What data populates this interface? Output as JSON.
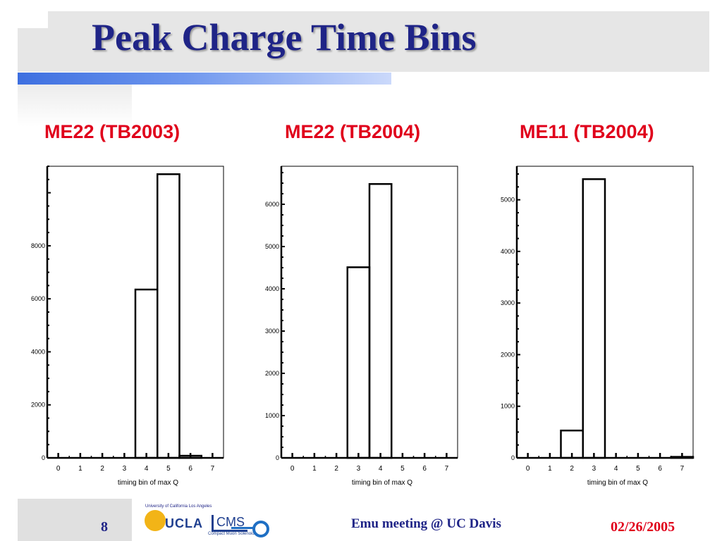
{
  "slide": {
    "title": "Peak Charge Time Bins",
    "page_number": "8",
    "footer_center": "Emu meeting @ UC Davis",
    "footer_date": "02/26/2005",
    "logo": {
      "top_text": "University of California Los Angeles",
      "ucla": "UCLA",
      "cms": "CMS",
      "cms_sub": "Compact Muon Solenoid"
    }
  },
  "colors": {
    "title": "#1f2487",
    "panel_title": "#e0001b",
    "accent_blue": "#3d6fe0",
    "band_gray": "#e6e6e6"
  },
  "chart_data": [
    {
      "type": "bar",
      "title": "ME22 (TB2003)",
      "xlabel": "timing bin of max Q",
      "ylabel": "",
      "categories": [
        "0",
        "1",
        "2",
        "3",
        "4",
        "5",
        "6",
        "7"
      ],
      "values": [
        0,
        0,
        0,
        0,
        6350,
        10700,
        80,
        0
      ],
      "ylim": [
        0,
        11000
      ],
      "xlim": [
        -0.5,
        7.5
      ],
      "yticks": [
        0,
        2000,
        4000,
        6000,
        8000,
        10000
      ],
      "ytick_labels": [
        "0",
        "2000",
        "4000",
        "6000",
        "8000",
        ""
      ],
      "histogram_step": true,
      "grid": false
    },
    {
      "type": "bar",
      "title": "ME22 (TB2004)",
      "xlabel": "timing bin of max Q",
      "ylabel": "",
      "categories": [
        "0",
        "1",
        "2",
        "3",
        "4",
        "5",
        "6",
        "7"
      ],
      "values": [
        0,
        0,
        0,
        4510,
        6480,
        0,
        0,
        0
      ],
      "ylim": [
        0,
        6900
      ],
      "xlim": [
        -0.5,
        7.5
      ],
      "yticks": [
        0,
        1000,
        2000,
        3000,
        4000,
        5000,
        6000
      ],
      "ytick_labels": [
        "0",
        "1000",
        "2000",
        "3000",
        "4000",
        "5000",
        "6000"
      ],
      "histogram_step": true,
      "grid": false
    },
    {
      "type": "bar",
      "title": "ME11 (TB2004)",
      "xlabel": "timing bin of max Q",
      "ylabel": "",
      "categories": [
        "0",
        "1",
        "2",
        "3",
        "4",
        "5",
        "6",
        "7"
      ],
      "values": [
        0,
        0,
        530,
        5400,
        0,
        0,
        0,
        20
      ],
      "ylim": [
        0,
        5650
      ],
      "xlim": [
        -0.5,
        7.5
      ],
      "yticks": [
        0,
        1000,
        2000,
        3000,
        4000,
        5000
      ],
      "ytick_labels": [
        "0",
        "1000",
        "2000",
        "3000",
        "4000",
        "5000"
      ],
      "histogram_step": true,
      "grid": false
    }
  ]
}
